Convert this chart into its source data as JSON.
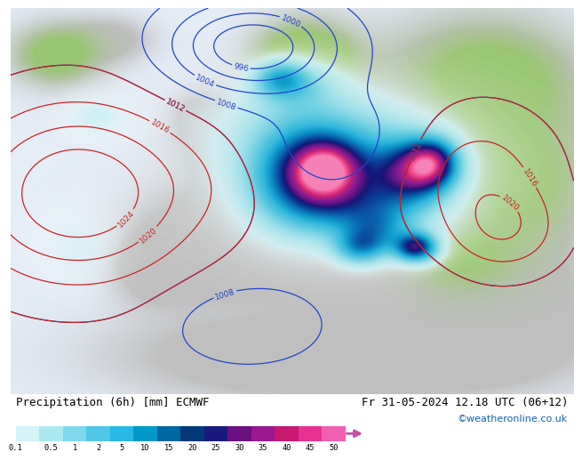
{
  "title_left": "Precipitation (6h) [mm] ECMWF",
  "title_right": "Fr 31-05-2024 12.18 UTC (06+12)",
  "credit": "©weatheronline.co.uk",
  "colorbar_labels": [
    "0.1",
    "0.5",
    "1",
    "2",
    "5",
    "10",
    "15",
    "20",
    "25",
    "30",
    "35",
    "40",
    "45",
    "50"
  ],
  "colorbar_colors": [
    "#d4f4f8",
    "#aae8f0",
    "#7dd8ec",
    "#50c8e8",
    "#28b8e4",
    "#009ac8",
    "#0068a0",
    "#003878",
    "#1a1a7e",
    "#6a1080",
    "#9a1890",
    "#c81870",
    "#e83090",
    "#f060b0"
  ],
  "label_fontsize": 9,
  "credit_fontsize": 8,
  "credit_color": "#1060c0",
  "map_bg_color": "#f0ece8",
  "sea_color": "#ddeeff",
  "land_color_gray": "#c8c8c8",
  "land_color_green": "#b8d8a0"
}
